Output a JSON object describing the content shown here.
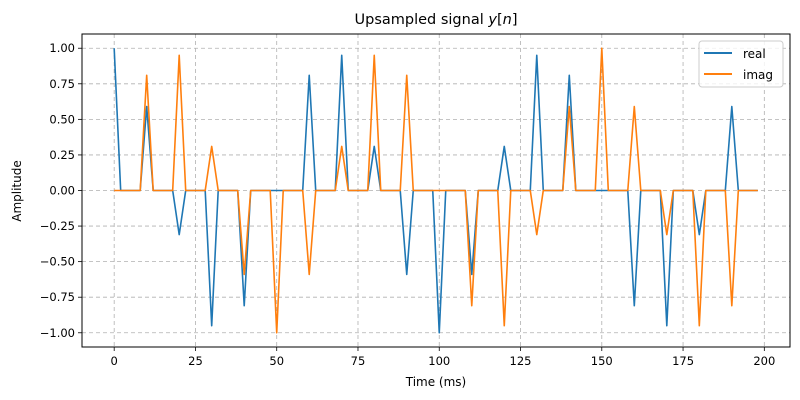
{
  "chart_data": {
    "type": "line",
    "title": "Upsampled signal y[n]",
    "title_prefix": "Upsampled signal ",
    "title_math": "y[n]",
    "xlabel": "Time (ms)",
    "ylabel": "Amplitude",
    "xlim": [
      -9.9,
      207.9
    ],
    "ylim": [
      -1.1,
      1.1
    ],
    "xticks": [
      0,
      25,
      50,
      75,
      100,
      125,
      150,
      175,
      200
    ],
    "xtick_labels": [
      "0",
      "25",
      "50",
      "75",
      "100",
      "125",
      "150",
      "175",
      "200"
    ],
    "yticks": [
      1.0,
      0.75,
      0.5,
      0.25,
      0.0,
      -0.25,
      -0.5,
      -0.75,
      -1.0
    ],
    "ytick_labels": [
      "1.00",
      "0.75",
      "0.50",
      "0.25",
      "0.00",
      "−0.25",
      "−0.50",
      "−0.75",
      "−1.00"
    ],
    "grid": true,
    "legend_position": "upper right",
    "sample_step_ms": 2,
    "upsample_factor": 5,
    "x_end_ms": 198,
    "nonzero_sample_times_ms": [
      0,
      10,
      20,
      30,
      40,
      50,
      60,
      70,
      80,
      90,
      100,
      110,
      120,
      130,
      140,
      150,
      160,
      170,
      180,
      190
    ],
    "series": [
      {
        "name": "real",
        "color": "#1f77b4",
        "values": [
          1.0,
          0.59,
          -0.31,
          -0.95,
          -0.81,
          0.0,
          0.81,
          0.95,
          0.31,
          -0.59,
          -1.0,
          -0.59,
          0.31,
          0.95,
          0.81,
          0.0,
          -0.81,
          -0.95,
          -0.31,
          0.59
        ]
      },
      {
        "name": "imag",
        "color": "#ff7f0e",
        "values": [
          0.0,
          0.81,
          0.95,
          0.31,
          -0.59,
          -1.0,
          -0.59,
          0.31,
          0.95,
          0.81,
          0.0,
          -0.81,
          -0.95,
          -0.31,
          0.59,
          1.0,
          0.59,
          -0.31,
          -0.95,
          -0.81
        ]
      }
    ]
  }
}
